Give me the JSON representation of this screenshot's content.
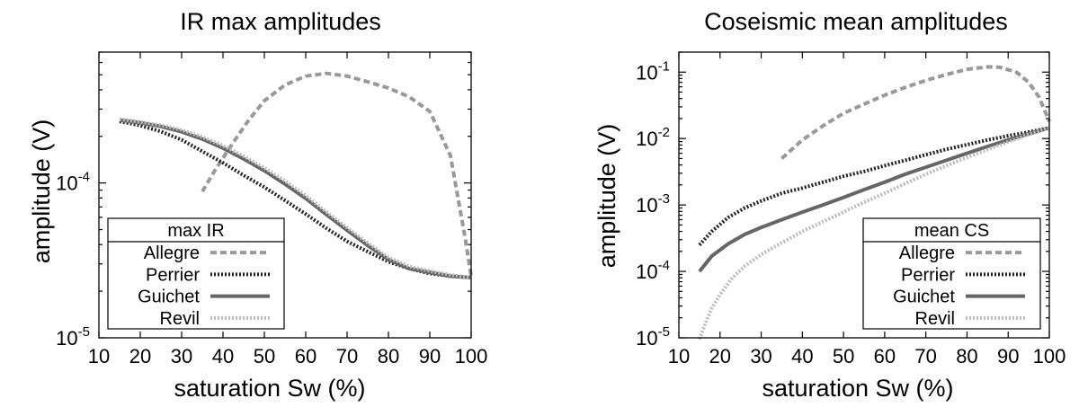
{
  "chart_data": [
    {
      "type": "line",
      "title": "IR max amplitudes",
      "xlabel": "saturation Sw (%)",
      "ylabel": "amplitude (V)",
      "xlim": [
        10,
        100
      ],
      "ylim": [
        1e-05,
        0.0007
      ],
      "yscale": "log",
      "xticks": [
        "10",
        "20",
        "30",
        "40",
        "50",
        "60",
        "70",
        "80",
        "90",
        "100"
      ],
      "yticks": [
        {
          "base": "10",
          "exp": "-5",
          "value": 1e-05
        },
        {
          "base": "10",
          "exp": "-4",
          "value": 0.0001
        }
      ],
      "legend": {
        "title": "max IR",
        "placement": "bottom-left"
      },
      "series": [
        {
          "name": "Allegre",
          "style": "dashed",
          "color": "#999999",
          "x": [
            35,
            38,
            42,
            46,
            50,
            55,
            60,
            65,
            70,
            75,
            80,
            85,
            90,
            95,
            97,
            98.5,
            100
          ],
          "y": [
            8.8e-05,
            0.00012,
            0.000175,
            0.00025,
            0.00034,
            0.00043,
            0.00049,
            0.00051,
            0.00049,
            0.00045,
            0.00041,
            0.00036,
            0.00029,
            0.00015,
            7.5e-05,
            4.5e-05,
            2.5e-05
          ]
        },
        {
          "name": "Perrier",
          "style": "dotted",
          "color": "#222222",
          "x": [
            15,
            20,
            25,
            30,
            35,
            40,
            45,
            50,
            55,
            60,
            65,
            70,
            75,
            80,
            85,
            90,
            95,
            100
          ],
          "y": [
            0.00025,
            0.000235,
            0.000215,
            0.00019,
            0.00016,
            0.000135,
            0.000112,
            9.4e-05,
            7.7e-05,
            6.3e-05,
            5.1e-05,
            4.2e-05,
            3.6e-05,
            3.1e-05,
            2.8e-05,
            2.6e-05,
            2.5e-05,
            2.45e-05
          ]
        },
        {
          "name": "Guichet",
          "style": "solid",
          "color": "#666666",
          "x": [
            15,
            20,
            25,
            30,
            35,
            40,
            45,
            50,
            55,
            60,
            65,
            70,
            75,
            80,
            85,
            90,
            95,
            100
          ],
          "y": [
            0.000255,
            0.000245,
            0.000232,
            0.000214,
            0.000192,
            0.000168,
            0.000143,
            0.00012,
            9.85e-05,
            7.95e-05,
            6.25e-05,
            4.95e-05,
            3.95e-05,
            3.2e-05,
            2.8e-05,
            2.65e-05,
            2.5e-05,
            2.45e-05
          ]
        },
        {
          "name": "Revil",
          "style": "dotted",
          "color": "#bbbbbb",
          "x": [
            15,
            20,
            25,
            30,
            35,
            40,
            45,
            50,
            55,
            60,
            65,
            70,
            75,
            80,
            85,
            90,
            95,
            100
          ],
          "y": [
            0.000258,
            0.000248,
            0.000236,
            0.00022,
            0.000198,
            0.000174,
            0.000149,
            0.000125,
            0.000103,
            8.3e-05,
            6.5e-05,
            5.15e-05,
            4.1e-05,
            3.3e-05,
            2.9e-05,
            2.7e-05,
            2.55e-05,
            2.45e-05
          ]
        }
      ]
    },
    {
      "type": "line",
      "title": "Coseismic mean amplitudes",
      "xlabel": "saturation Sw (%)",
      "ylabel": "amplitude (V)",
      "xlim": [
        10,
        100
      ],
      "ylim": [
        1e-05,
        0.2
      ],
      "yscale": "log",
      "xticks": [
        "10",
        "20",
        "30",
        "40",
        "50",
        "60",
        "70",
        "80",
        "90",
        "100"
      ],
      "yticks": [
        {
          "base": "10",
          "exp": "-5",
          "value": 1e-05
        },
        {
          "base": "10",
          "exp": "-4",
          "value": 0.0001
        },
        {
          "base": "10",
          "exp": "-3",
          "value": 0.001
        },
        {
          "base": "10",
          "exp": "-2",
          "value": 0.01
        },
        {
          "base": "10",
          "exp": "-1",
          "value": 0.1
        }
      ],
      "legend": {
        "title": "mean CS",
        "placement": "bottom-right"
      },
      "series": [
        {
          "name": "Allegre",
          "style": "dashed",
          "color": "#999999",
          "x": [
            35,
            40,
            45,
            50,
            55,
            60,
            65,
            70,
            75,
            80,
            85,
            88,
            92,
            95,
            97.5,
            100
          ],
          "y": [
            0.005,
            0.0095,
            0.0155,
            0.024,
            0.033,
            0.045,
            0.059,
            0.075,
            0.092,
            0.11,
            0.12,
            0.118,
            0.1,
            0.07,
            0.042,
            0.018
          ]
        },
        {
          "name": "Perrier",
          "style": "dotted",
          "color": "#222222",
          "x": [
            15,
            18,
            22,
            26,
            30,
            35,
            40,
            45,
            50,
            55,
            60,
            65,
            70,
            75,
            80,
            85,
            90,
            95,
            100
          ],
          "y": [
            0.00025,
            0.0004,
            0.00065,
            0.0009,
            0.00115,
            0.0015,
            0.0018,
            0.0022,
            0.0027,
            0.0032,
            0.0039,
            0.0047,
            0.0057,
            0.0069,
            0.0081,
            0.0095,
            0.011,
            0.0125,
            0.0145
          ]
        },
        {
          "name": "Guichet",
          "style": "solid",
          "color": "#666666",
          "x": [
            15,
            18,
            22,
            26,
            30,
            35,
            40,
            45,
            50,
            55,
            60,
            65,
            70,
            75,
            80,
            85,
            90,
            95,
            100
          ],
          "y": [
            0.0001,
            0.00017,
            0.00026,
            0.00036,
            0.00046,
            0.0006,
            0.00078,
            0.001,
            0.0013,
            0.0017,
            0.0022,
            0.0029,
            0.0037,
            0.0047,
            0.006,
            0.0076,
            0.0095,
            0.0118,
            0.0145
          ]
        },
        {
          "name": "Revil",
          "style": "dotted",
          "color": "#bbbbbb",
          "x": [
            15,
            16.5,
            18,
            20,
            23,
            26,
            30,
            35,
            40,
            45,
            50,
            55,
            60,
            65,
            70,
            75,
            80,
            85,
            90,
            95,
            100
          ],
          "y": [
            9.5e-06,
            1.7e-05,
            2.8e-05,
            4.5e-05,
            8e-05,
            0.00012,
            0.00018,
            0.00027,
            0.0004,
            0.00056,
            0.00078,
            0.0011,
            0.0015,
            0.0021,
            0.0029,
            0.0039,
            0.0052,
            0.0068,
            0.0089,
            0.0115,
            0.0145
          ]
        }
      ]
    }
  ]
}
